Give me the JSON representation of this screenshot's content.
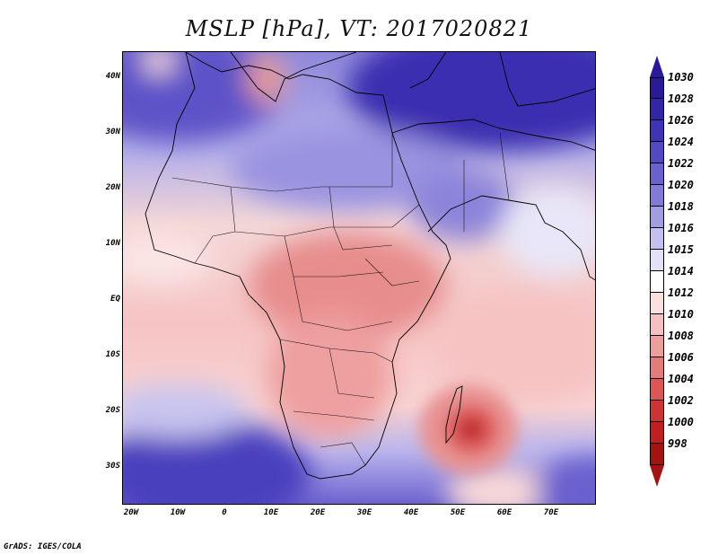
{
  "title": "MSLP [hPa], VT: 2017020821",
  "footer": "GrADS: IGES/COLA",
  "y_axis": [
    "40N",
    "30N",
    "20N",
    "10N",
    "EQ",
    "10S",
    "20S",
    "30S"
  ],
  "x_axis": [
    "20W",
    "10W",
    "0",
    "10E",
    "20E",
    "30E",
    "40E",
    "50E",
    "60E",
    "70E"
  ],
  "colorbar": {
    "labels": [
      "1030",
      "1028",
      "1026",
      "1024",
      "1022",
      "1020",
      "1018",
      "1016",
      "1015",
      "1014",
      "1012",
      "1010",
      "1008",
      "1006",
      "1004",
      "1002",
      "1000",
      "998"
    ],
    "colors": [
      "#2a1a9a",
      "#3424a8",
      "#3f34b6",
      "#5548c4",
      "#6a60cf",
      "#8379d8",
      "#a29ce2",
      "#c3bfee",
      "#e3e1f8",
      "#ffffff",
      "#fbe0e0",
      "#f6c0c0",
      "#ef9e9e",
      "#e57a7a",
      "#dc5656",
      "#cf3434",
      "#c01f1f",
      "#a51212"
    ]
  }
}
